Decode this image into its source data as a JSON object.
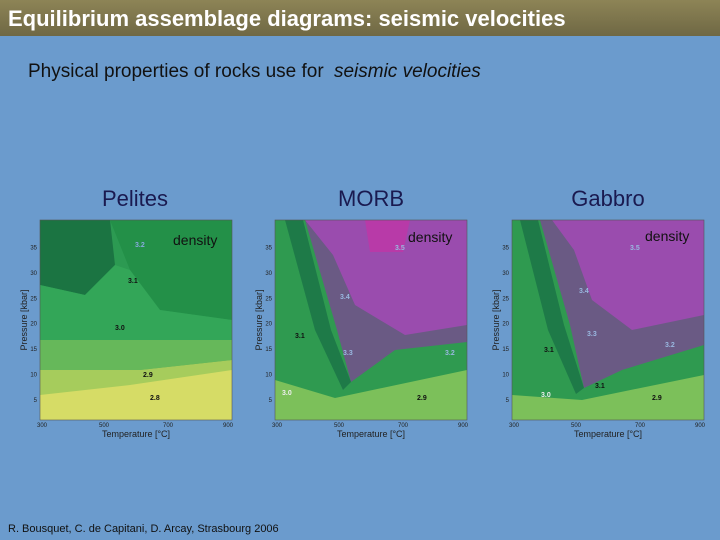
{
  "header": {
    "title": "Equilibrium assemblage diagrams: seismic velocities"
  },
  "subtitle": {
    "plain": "Physical properties of rocks use for",
    "italic": "seismic velocities"
  },
  "axes": {
    "x_label": "Temperature [°C]",
    "y_label": "Pressure [kbar]",
    "x_ticks": [
      300,
      500,
      700,
      900
    ],
    "y_ticks": [
      5,
      10,
      15,
      20,
      25,
      30,
      35
    ]
  },
  "panels": [
    {
      "label": "Pelites",
      "property": "density",
      "contours": [
        "3.2",
        "3.1",
        "3.0",
        "2.9",
        "2.8"
      ]
    },
    {
      "label": "MORB",
      "property": "density",
      "contours": [
        "3.5",
        "3.4",
        "3.1",
        "3.3",
        "3.2",
        "3.0",
        "2.9"
      ]
    },
    {
      "label": "Gabbro",
      "property": "density",
      "contours": [
        "3.5",
        "3.4",
        "3.3",
        "3.2",
        "3.1",
        "3.1",
        "3.0",
        "2.9"
      ]
    }
  ],
  "footer": {
    "credit": "R. Bousquet, C. de Capitani, D. Arcay, Strasbourg 2006"
  }
}
